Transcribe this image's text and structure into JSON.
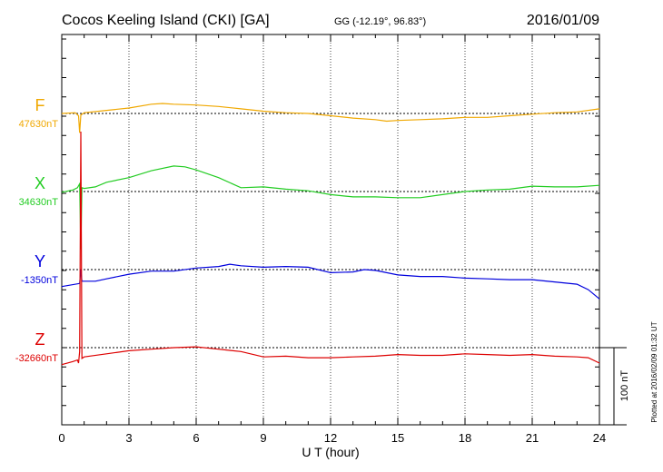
{
  "header": {
    "station": "Cocos Keeling Island (CKI)  [GA]",
    "coords": "GG (-12.19°,  96.83°)",
    "date": "2016/01/09"
  },
  "side_note": "Plotted at 2016/02/09 01:32 UT",
  "chart_data": {
    "type": "line",
    "xlabel": "U T (hour)",
    "xlim": [
      0,
      24
    ],
    "x_ticks": [
      "0",
      "3",
      "6",
      "9",
      "12",
      "15",
      "18",
      "21",
      "24"
    ],
    "scale_bar_label": "100 nT",
    "scale_bar_nT": 100,
    "series": [
      {
        "name": "F",
        "baseline_label": "47630nT",
        "color": "#f0a800",
        "points": [
          [
            0,
            0
          ],
          [
            0.6,
            1
          ],
          [
            0.75,
            -3
          ],
          [
            0.8,
            -25
          ],
          [
            0.85,
            -2
          ],
          [
            1,
            1
          ],
          [
            2,
            4
          ],
          [
            3,
            7
          ],
          [
            4,
            12
          ],
          [
            4.5,
            13
          ],
          [
            5,
            12
          ],
          [
            6,
            11
          ],
          [
            7,
            9
          ],
          [
            8,
            6
          ],
          [
            9,
            3
          ],
          [
            10,
            1
          ],
          [
            11,
            0
          ],
          [
            12,
            -3
          ],
          [
            13,
            -6
          ],
          [
            14,
            -8
          ],
          [
            14.5,
            -10
          ],
          [
            15,
            -9
          ],
          [
            16,
            -8
          ],
          [
            17,
            -7
          ],
          [
            18,
            -5
          ],
          [
            19,
            -5
          ],
          [
            20,
            -3
          ],
          [
            21,
            -1
          ],
          [
            22,
            1
          ],
          [
            23,
            2
          ],
          [
            24,
            6
          ]
        ]
      },
      {
        "name": "X",
        "baseline_label": "34630nT",
        "color": "#22cc22",
        "points": [
          [
            0,
            -1
          ],
          [
            0.5,
            2
          ],
          [
            0.7,
            5
          ],
          [
            0.8,
            10
          ],
          [
            0.85,
            -75
          ],
          [
            0.9,
            5
          ],
          [
            1,
            4
          ],
          [
            1.5,
            6
          ],
          [
            2,
            12
          ],
          [
            3,
            18
          ],
          [
            4,
            27
          ],
          [
            5,
            33
          ],
          [
            5.5,
            32
          ],
          [
            6,
            28
          ],
          [
            7,
            18
          ],
          [
            8,
            5
          ],
          [
            9,
            6
          ],
          [
            10,
            3
          ],
          [
            11,
            1
          ],
          [
            12,
            -4
          ],
          [
            13,
            -7
          ],
          [
            14,
            -7
          ],
          [
            15,
            -8
          ],
          [
            16,
            -8
          ],
          [
            17,
            -4
          ],
          [
            18,
            0
          ],
          [
            19,
            2
          ],
          [
            20,
            3
          ],
          [
            21,
            7
          ],
          [
            22,
            6
          ],
          [
            23,
            6
          ],
          [
            24,
            8
          ]
        ]
      },
      {
        "name": "Y",
        "baseline_label": "-1350nT",
        "color": "#0000dd",
        "points": [
          [
            0,
            -22
          ],
          [
            0.8,
            -18
          ],
          [
            0.85,
            0
          ],
          [
            0.9,
            -15
          ],
          [
            1.5,
            -15
          ],
          [
            2,
            -12
          ],
          [
            3,
            -6
          ],
          [
            4,
            -2
          ],
          [
            5,
            -2
          ],
          [
            6,
            2
          ],
          [
            7,
            4
          ],
          [
            7.5,
            7
          ],
          [
            8,
            5
          ],
          [
            9,
            3
          ],
          [
            10,
            4
          ],
          [
            11,
            3
          ],
          [
            12,
            -4
          ],
          [
            13,
            -3
          ],
          [
            13.5,
            0
          ],
          [
            14,
            -1
          ],
          [
            15,
            -7
          ],
          [
            16,
            -9
          ],
          [
            17,
            -9
          ],
          [
            18,
            -11
          ],
          [
            19,
            -12
          ],
          [
            20,
            -13
          ],
          [
            21,
            -13
          ],
          [
            22,
            -16
          ],
          [
            23,
            -19
          ],
          [
            23.5,
            -26
          ],
          [
            24,
            -38
          ]
        ]
      },
      {
        "name": "Z",
        "baseline_label": "-32660nT",
        "color": "#dd0000",
        "points": [
          [
            0,
            -22
          ],
          [
            0.5,
            -18
          ],
          [
            0.7,
            -16
          ],
          [
            0.75,
            -20
          ],
          [
            0.8,
            -5
          ],
          [
            0.85,
            280
          ],
          [
            0.9,
            -14
          ],
          [
            1,
            -12
          ],
          [
            2,
            -8
          ],
          [
            3,
            -4
          ],
          [
            4,
            -2
          ],
          [
            5,
            0
          ],
          [
            6,
            1
          ],
          [
            7,
            -2
          ],
          [
            8,
            -5
          ],
          [
            9,
            -12
          ],
          [
            10,
            -11
          ],
          [
            11,
            -13
          ],
          [
            12,
            -13
          ],
          [
            13,
            -12
          ],
          [
            14,
            -11
          ],
          [
            15,
            -9
          ],
          [
            16,
            -10
          ],
          [
            17,
            -10
          ],
          [
            18,
            -8
          ],
          [
            19,
            -9
          ],
          [
            20,
            -10
          ],
          [
            21,
            -9
          ],
          [
            22,
            -11
          ],
          [
            23,
            -12
          ],
          [
            23.5,
            -13
          ],
          [
            24,
            -20
          ]
        ]
      }
    ]
  }
}
